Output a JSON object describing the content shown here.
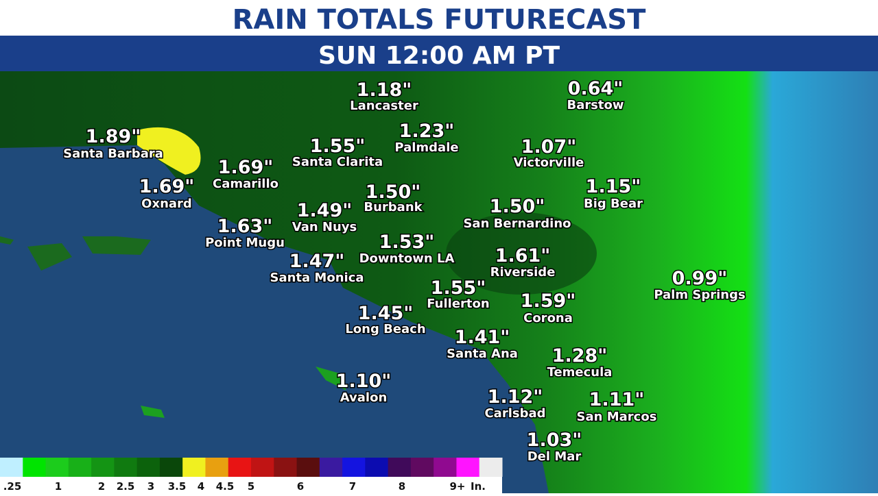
{
  "header": {
    "title": "RAIN TOTALS FUTURECAST",
    "subtitle": "SUN 12:00 AM PT"
  },
  "cities": [
    {
      "value": "1.18\"",
      "name": "Lancaster"
    },
    {
      "value": "0.64\"",
      "name": "Barstow"
    },
    {
      "value": "1.23\"",
      "name": "Palmdale"
    },
    {
      "value": "1.89\"",
      "name": "Santa Barbara"
    },
    {
      "value": "1.55\"",
      "name": "Santa Clarita"
    },
    {
      "value": "1.07\"",
      "name": "Victorville"
    },
    {
      "value": "1.69\"",
      "name": "Camarillo"
    },
    {
      "value": "1.69\"",
      "name": "Oxnard"
    },
    {
      "value": "1.50\"",
      "name": "Burbank"
    },
    {
      "value": "1.15\"",
      "name": "Big Bear"
    },
    {
      "value": "1.49\"",
      "name": "Van Nuys"
    },
    {
      "value": "1.50\"",
      "name": "San Bernardino"
    },
    {
      "value": "1.63\"",
      "name": "Point Mugu"
    },
    {
      "value": "1.53\"",
      "name": "Downtown LA"
    },
    {
      "value": "1.61\"",
      "name": "Riverside"
    },
    {
      "value": "1.47\"",
      "name": "Santa Monica"
    },
    {
      "value": "0.99\"",
      "name": "Palm Springs"
    },
    {
      "value": "1.55\"",
      "name": "Fullerton"
    },
    {
      "value": "1.59\"",
      "name": "Corona"
    },
    {
      "value": "1.45\"",
      "name": "Long Beach"
    },
    {
      "value": "1.41\"",
      "name": "Santa Ana"
    },
    {
      "value": "1.28\"",
      "name": "Temecula"
    },
    {
      "value": "1.10\"",
      "name": "Avalon"
    },
    {
      "value": "1.12\"",
      "name": "Carlsbad"
    },
    {
      "value": "1.11\"",
      "name": "San Marcos"
    },
    {
      "value": "1.03\"",
      "name": "Del Mar"
    }
  ],
  "legend": {
    "labels": [
      ".25",
      "1",
      "2",
      "2.5",
      "3",
      "3.5",
      "4",
      "4.5",
      "5",
      "6",
      "7",
      "8",
      "9+",
      "In."
    ],
    "colors": [
      "#bfefff",
      "#00e400",
      "#1ccc1c",
      "#18b018",
      "#149414",
      "#107a10",
      "#0c620c",
      "#0a470a",
      "#f0f020",
      "#e8a010",
      "#e81414",
      "#c01414",
      "#8a1212",
      "#5a0e0e",
      "#3a1aa0",
      "#1414e0",
      "#0c0cb0",
      "#400a5a",
      "#600a60",
      "#900a90",
      "#ff14ff",
      "#ececec"
    ]
  }
}
